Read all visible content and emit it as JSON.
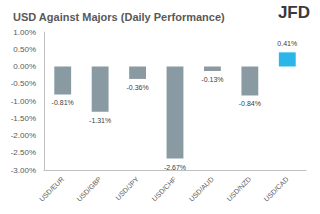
{
  "chart_data": {
    "type": "bar",
    "title": "USD Against Majors (Daily Performance)",
    "annotations": [
      "JFD"
    ],
    "categories": [
      "USD/EUR",
      "USD/GBP",
      "USD/JPY",
      "USD/CHF",
      "USD/AUD",
      "USD/NZD",
      "USD/CAD"
    ],
    "values": [
      -0.81,
      -1.31,
      -0.36,
      -2.67,
      -0.13,
      -0.84,
      0.41
    ],
    "value_labels": [
      "-0.81%",
      "-1.31%",
      "-0.36%",
      "-2.67%",
      "-0.13%",
      "-0.84%",
      "0.41%"
    ],
    "colors": [
      "#8a9aa2",
      "#8a9aa2",
      "#8a9aa2",
      "#8a9aa2",
      "#8a9aa2",
      "#8a9aa2",
      "#29b6e8"
    ],
    "ylim": [
      -3,
      1
    ],
    "yticks": [
      {
        "value": -3,
        "label": "-3.00%"
      },
      {
        "value": -2.5,
        "label": "-2.50%"
      },
      {
        "value": -2,
        "label": "-2.00%"
      },
      {
        "value": -1.5,
        "label": "-1.50%"
      },
      {
        "value": -1,
        "label": "-1.00%"
      },
      {
        "value": -0.5,
        "label": "-0.50%"
      },
      {
        "value": 0,
        "label": "0.00%"
      },
      {
        "value": 0.5,
        "label": "0.50%"
      },
      {
        "value": 1,
        "label": "1.00%"
      }
    ],
    "grid": false,
    "data_labels": true
  }
}
